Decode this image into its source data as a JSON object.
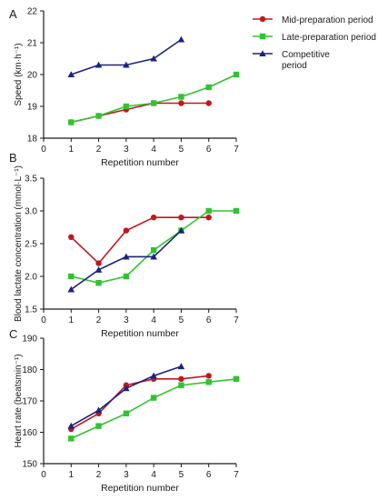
{
  "legend": {
    "placement": "top-right of panel A",
    "entries": [
      {
        "label": "Mid-preparation period",
        "marker": "circle"
      },
      {
        "label": "Late-preparation period",
        "marker": "square"
      },
      {
        "label_lines": [
          "Competitive",
          "period"
        ],
        "marker": "triangle"
      }
    ]
  },
  "colors": {
    "mid": "#c0181e",
    "late": "#2fc42f",
    "competitive": "#1a237e",
    "axis": "#1a1a1a"
  },
  "chart_data": [
    {
      "panel_label": "A",
      "type": "line",
      "xlabel": "Repetition number",
      "ylabel": "Speed (km·h⁻¹)",
      "xlim": [
        0,
        7
      ],
      "ylim": [
        18,
        22
      ],
      "xticks": [
        0,
        1,
        2,
        3,
        4,
        5,
        6,
        7
      ],
      "yticks": [
        18,
        19,
        20,
        21,
        22
      ],
      "ytick_labels": [
        "18",
        "19",
        "20",
        "21",
        "22"
      ],
      "grid": false,
      "series": [
        {
          "name": "Mid-preparation period",
          "key": "mid",
          "marker": "circle",
          "x": [
            1,
            2,
            3,
            4,
            5,
            6
          ],
          "y": [
            18.5,
            18.7,
            18.9,
            19.1,
            19.1,
            19.1
          ]
        },
        {
          "name": "Late-preparation period",
          "key": "late",
          "marker": "square",
          "x": [
            1,
            2,
            3,
            4,
            5,
            6,
            7
          ],
          "y": [
            18.5,
            18.7,
            19.0,
            19.1,
            19.3,
            19.6,
            20.0
          ]
        },
        {
          "name": "Competitive period",
          "key": "competitive",
          "marker": "triangle",
          "x": [
            1,
            2,
            3,
            4,
            5
          ],
          "y": [
            20.0,
            20.3,
            20.3,
            20.5,
            21.1
          ]
        }
      ]
    },
    {
      "panel_label": "B",
      "type": "line",
      "xlabel": "Repetition number",
      "ylabel": "Blood lactate concentration (mmol·L⁻¹)",
      "xlim": [
        0,
        7
      ],
      "ylim": [
        1.5,
        3.5
      ],
      "xticks": [
        0,
        1,
        2,
        3,
        4,
        5,
        6,
        7
      ],
      "yticks": [
        1.5,
        2.0,
        2.5,
        3.0,
        3.5
      ],
      "ytick_labels": [
        "1.5",
        "2.0",
        "2.5",
        "3.0",
        "3.5"
      ],
      "grid": false,
      "series": [
        {
          "name": "Mid-preparation period",
          "key": "mid",
          "marker": "circle",
          "x": [
            1,
            2,
            3,
            4,
            5,
            6
          ],
          "y": [
            2.6,
            2.2,
            2.7,
            2.9,
            2.9,
            2.9
          ]
        },
        {
          "name": "Late-preparation period",
          "key": "late",
          "marker": "square",
          "x": [
            1,
            2,
            3,
            4,
            5,
            6,
            7
          ],
          "y": [
            2.0,
            1.9,
            2.0,
            2.4,
            2.7,
            3.0,
            3.0
          ]
        },
        {
          "name": "Competitive period",
          "key": "competitive",
          "marker": "triangle",
          "x": [
            1,
            2,
            3,
            4,
            5
          ],
          "y": [
            1.8,
            2.1,
            2.3,
            2.3,
            2.7
          ]
        }
      ]
    },
    {
      "panel_label": "C",
      "type": "line",
      "xlabel": "Repetition number",
      "ylabel": "Heart rate (beatsmin⁻¹)",
      "xlim": [
        0,
        7
      ],
      "ylim": [
        150,
        190
      ],
      "xticks": [
        0,
        1,
        2,
        3,
        4,
        5,
        6,
        7
      ],
      "yticks": [
        150,
        160,
        170,
        180,
        190
      ],
      "ytick_labels": [
        "150",
        "160",
        "170",
        "180",
        "190"
      ],
      "grid": false,
      "series": [
        {
          "name": "Mid-preparation period",
          "key": "mid",
          "marker": "circle",
          "x": [
            1,
            2,
            3,
            4,
            5,
            6
          ],
          "y": [
            161,
            166,
            175,
            177,
            177,
            178
          ]
        },
        {
          "name": "Late-preparation period",
          "key": "late",
          "marker": "square",
          "x": [
            1,
            2,
            3,
            4,
            5,
            6,
            7
          ],
          "y": [
            158,
            162,
            166,
            171,
            175,
            176,
            177
          ]
        },
        {
          "name": "Competitive period",
          "key": "competitive",
          "marker": "triangle",
          "x": [
            1,
            2,
            3,
            4,
            5
          ],
          "y": [
            162,
            167,
            174,
            178,
            181
          ]
        }
      ]
    }
  ]
}
